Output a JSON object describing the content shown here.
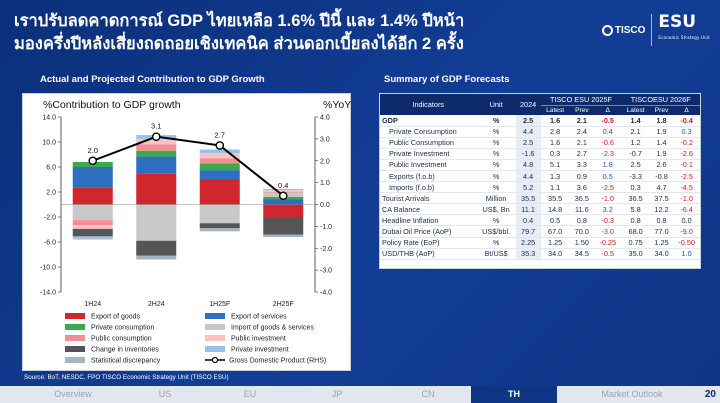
{
  "headline": {
    "line1": "เราปรับลดคาดการณ์ GDP ไทยเหลือ 1.6% ปีนี้ และ 1.4% ปีหน้า",
    "line2": "มองครึ่งปีหลังเสี่ยงถดถอยเชิงเทคนิค ส่วนดอกเบี้ยลงได้อีก 2 ครั้ง"
  },
  "brand": {
    "tisco": "TISCO",
    "esu": "ESU",
    "esu_sub": "Economic Strategy Unit"
  },
  "chart_section_title": "Actual and Projected Contribution to GDP Growth",
  "table_section_title": "Summary of GDP Forecasts",
  "colors": {
    "background": "#0f3585",
    "export_goods": "#d0272e",
    "export_services": "#2e6fc0",
    "private_consumption": "#3aaa4a",
    "import_goods_services": "#c8c8c8",
    "public_consumption": "#f28f93",
    "public_investment": "#f7c4c4",
    "change_inventories": "#555555",
    "private_investment": "#93c2ea",
    "statistical_discrepancy": "#a7b4c6",
    "gdp_line": "#000000",
    "table_header": "#0d2b6b",
    "negative": "#c8191e",
    "positive": "#1a55c0"
  },
  "chart_data": {
    "type": "bar",
    "stacked": true,
    "categories": [
      "1H24",
      "2H24",
      "1H25F",
      "2H25F"
    ],
    "ylabel": "%Contribution to GDP growth",
    "y2label": "%YoY",
    "ylim": [
      -14,
      14
    ],
    "y2lim": [
      -4,
      4
    ],
    "yticks": [
      "14.0",
      "10.0",
      "6.0",
      "2.0",
      "-2.0",
      "-6.0",
      "-10.0",
      "-14.0"
    ],
    "y2ticks": [
      "4.0",
      "3.0",
      "2.0",
      "1.0",
      "0.0",
      "-1.0",
      "-2.0",
      "-3.0",
      "-4.0"
    ],
    "series": [
      {
        "name": "Export of goods",
        "key": "export_goods",
        "values": [
          2.7,
          5.0,
          4.0,
          -2.0
        ]
      },
      {
        "name": "Export of services",
        "key": "export_services",
        "values": [
          3.3,
          2.7,
          1.5,
          0.8
        ]
      },
      {
        "name": "Private consumption",
        "key": "private_consumption",
        "values": [
          0.8,
          0.9,
          1.1,
          0.4
        ]
      },
      {
        "name": "Import of goods & services",
        "key": "import_goods_services",
        "values": [
          -2.5,
          -5.8,
          -3.0,
          0.7
        ]
      },
      {
        "name": "Public consumption",
        "key": "public_consumption",
        "values": [
          -0.8,
          1.0,
          0.8,
          0.1
        ]
      },
      {
        "name": "Public investment",
        "key": "public_investment",
        "values": [
          -0.6,
          0.9,
          0.8,
          0.3
        ]
      },
      {
        "name": "Change in inventories",
        "key": "change_inventories",
        "values": [
          -1.2,
          -2.4,
          -0.8,
          -2.8
        ]
      },
      {
        "name": "Private investment",
        "key": "private_investment",
        "values": [
          -0.3,
          0.6,
          0.6,
          0.2
        ]
      },
      {
        "name": "Statistical discrepancy",
        "key": "statistical_discrepancy",
        "values": [
          -0.2,
          -0.6,
          -0.5,
          -0.4
        ]
      }
    ],
    "gdp_line": {
      "name": "Gross Domestic Product (RHS)",
      "values": [
        2.0,
        3.1,
        2.7,
        0.4
      ],
      "labels": [
        "2.0",
        "3.1",
        "2.7",
        "0.4"
      ]
    },
    "legend_order": [
      [
        "export_goods",
        "export_services"
      ],
      [
        "private_consumption",
        "import_goods_services"
      ],
      [
        "public_consumption",
        "public_investment"
      ],
      [
        "change_inventories",
        "private_investment"
      ],
      [
        "statistical_discrepancy",
        "gdp_line"
      ]
    ]
  },
  "table": {
    "headers": {
      "indicators": "Indicators",
      "unit": "Unit",
      "year": "2024",
      "esu2025": "TISCO ESU 2025F",
      "esu2026": "TISCOESU 2026F",
      "latest": "Latest",
      "prev": "Prev",
      "delta": "Δ"
    },
    "rows": [
      {
        "ind": "GDP",
        "unit": "%",
        "y2024": "2.5",
        "l25": "1.6",
        "p25": "2.1",
        "d25": "-0.5",
        "l26": "1.4",
        "p26": "1.8",
        "d26": "-0.4",
        "bold": true,
        "indent": false
      },
      {
        "ind": "Private Consumption",
        "unit": "%",
        "y2024": "4.4",
        "l25": "2.8",
        "p25": "2.4",
        "d25": "0.4",
        "l26": "2.1",
        "p26": "1.9",
        "d26": "0.3",
        "bold": false,
        "indent": true
      },
      {
        "ind": "Public Consumption",
        "unit": "%",
        "y2024": "2.5",
        "l25": "1.6",
        "p25": "2.1",
        "d25": "-0.6",
        "l26": "1.2",
        "p26": "1.4",
        "d26": "-0.2",
        "bold": false,
        "indent": true
      },
      {
        "ind": "Private Investment",
        "unit": "%",
        "y2024": "-1.6",
        "l25": "0.3",
        "p25": "2.7",
        "d25": "-2.3",
        "l26": "-0.7",
        "p26": "1.9",
        "d26": "-2.6",
        "bold": false,
        "indent": true
      },
      {
        "ind": "Public Investment",
        "unit": "%",
        "y2024": "4.8",
        "l25": "5.1",
        "p25": "3.3",
        "d25": "1.8",
        "l26": "2.5",
        "p26": "2.6",
        "d26": "-0.1",
        "bold": false,
        "indent": true
      },
      {
        "ind": "Exports (f.o.b)",
        "unit": "%",
        "y2024": "4.4",
        "l25": "1.3",
        "p25": "0.9",
        "d25": "0.5",
        "l26": "-3.3",
        "p26": "-0.8",
        "d26": "-2.5",
        "bold": false,
        "indent": true
      },
      {
        "ind": "Imports (f.o.b)",
        "unit": "%",
        "y2024": "5.2",
        "l25": "1.1",
        "p25": "3.6",
        "d25": "-2.5",
        "l26": "0.3",
        "p26": "4.7",
        "d26": "-4.5",
        "bold": false,
        "indent": true
      },
      {
        "ind": "Tourist Arrivals",
        "unit": "Million",
        "y2024": "35.5",
        "l25": "35.5",
        "p25": "36.5",
        "d25": "-1.0",
        "l26": "36.5",
        "p26": "37.5",
        "d26": "-1.0",
        "bold": false,
        "indent": false
      },
      {
        "ind": "CA Balance",
        "unit": "US$, Bn",
        "y2024": "11.1",
        "l25": "14.8",
        "p25": "11.6",
        "d25": "3.2",
        "l26": "5.8",
        "p26": "12.2",
        "d26": "-6.4",
        "bold": false,
        "indent": false
      },
      {
        "ind": "Headline Inflation",
        "unit": "%",
        "y2024": "0.4",
        "l25": "0.5",
        "p25": "0.8",
        "d25": "-0.3",
        "l26": "0.8",
        "p26": "0.8",
        "d26": "0.0",
        "bold": false,
        "indent": false
      },
      {
        "ind": "Dubai Oil Price (AoP)",
        "unit": "US$/bbl.",
        "y2024": "79.7",
        "l25": "67.0",
        "p25": "70.0",
        "d25": "-3.0",
        "l26": "68.0",
        "p26": "77.0",
        "d26": "-9.0",
        "bold": false,
        "indent": false
      },
      {
        "ind": "Policy Rate (EoP)",
        "unit": "%",
        "y2024": "2.25",
        "l25": "1.25",
        "p25": "1.50",
        "d25": "-0.25",
        "l26": "0.75",
        "p26": "1.25",
        "d26": "-0.50",
        "bold": false,
        "indent": false
      },
      {
        "ind": "USD/THB (AoP)",
        "unit": "Bt/US$",
        "y2024": "35.3",
        "l25": "34.0",
        "p25": "34.5",
        "d25": "-0.5",
        "l26": "35.0",
        "p26": "34.0",
        "d26": "1.0",
        "bold": false,
        "indent": false
      }
    ]
  },
  "source": "Source: BoT, NESDC, FPO TISCO Economic Strategy Unit (TISCO ESU)",
  "nav": {
    "items": [
      "Overview",
      "US",
      "EU",
      "JP",
      "CN",
      "TH",
      "Market Outlook"
    ],
    "active": "TH"
  },
  "page_number": "20"
}
